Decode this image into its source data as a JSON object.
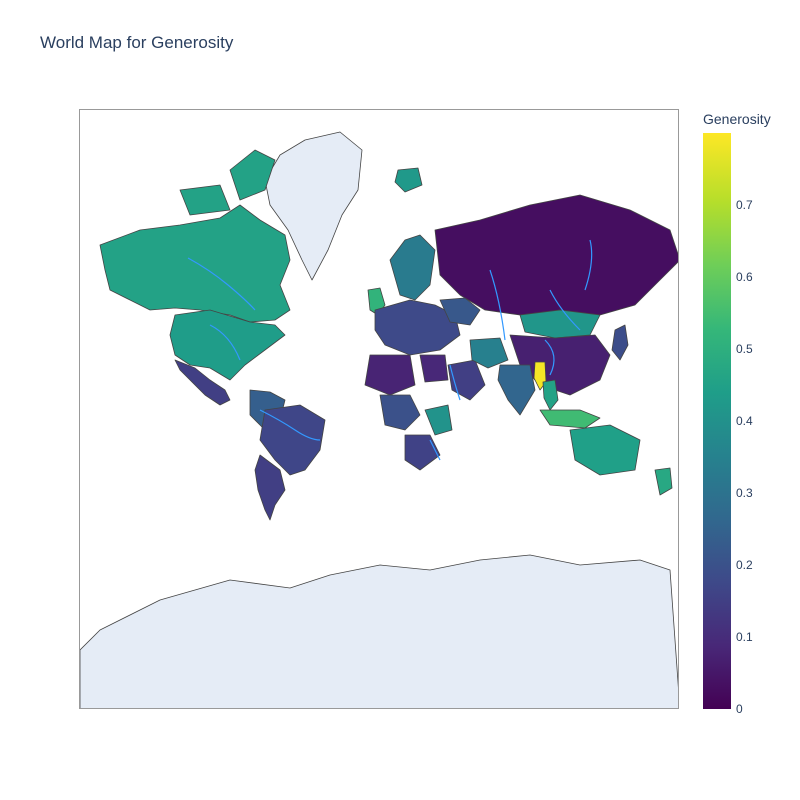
{
  "title": "World Map for Generosity",
  "colorbar": {
    "title": "Generosity",
    "ticks": [
      "0",
      "0.1",
      "0.2",
      "0.3",
      "0.4",
      "0.5",
      "0.6",
      "0.7"
    ],
    "range": [
      0,
      0.8
    ],
    "colorscale": "Viridis"
  },
  "map": {
    "projection": "mercator",
    "land_color": "#e5ecf6",
    "river_color": "#3399ff",
    "border_color": "#444444"
  },
  "regions": [
    {
      "name": "Canada",
      "value": 0.46
    },
    {
      "name": "United States",
      "value": 0.44
    },
    {
      "name": "Greenland",
      "value": 0.42
    },
    {
      "name": "Mexico",
      "value": 0.15
    },
    {
      "name": "Brazil",
      "value": 0.17
    },
    {
      "name": "Argentina",
      "value": 0.15
    },
    {
      "name": "Colombia",
      "value": 0.24
    },
    {
      "name": "United Kingdom",
      "value": 0.52
    },
    {
      "name": "Russia",
      "value": 0.03
    },
    {
      "name": "China",
      "value": 0.07
    },
    {
      "name": "Mongolia",
      "value": 0.42
    },
    {
      "name": "India",
      "value": 0.26
    },
    {
      "name": "Myanmar",
      "value": 0.79
    },
    {
      "name": "Indonesia",
      "value": 0.55
    },
    {
      "name": "Australia",
      "value": 0.45
    },
    {
      "name": "New Zealand",
      "value": 0.48
    },
    {
      "name": "Egypt",
      "value": 0.09
    },
    {
      "name": "Algeria",
      "value": 0.08
    },
    {
      "name": "Saudi Arabia",
      "value": 0.15
    },
    {
      "name": "Iran",
      "value": 0.35
    },
    {
      "name": "Kenya",
      "value": 0.41
    },
    {
      "name": "Nigeria",
      "value": 0.2
    },
    {
      "name": "South Africa",
      "value": 0.16
    },
    {
      "name": "Scandinavia",
      "value": 0.33
    },
    {
      "name": "Iceland",
      "value": 0.43
    },
    {
      "name": "Europe",
      "value": 0.18
    },
    {
      "name": "Japan",
      "value": 0.19
    },
    {
      "name": "Thailand",
      "value": 0.46
    },
    {
      "name": "Ukraine",
      "value": 0.22
    }
  ]
}
